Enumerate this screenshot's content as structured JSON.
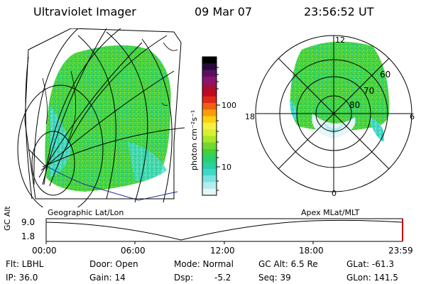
{
  "header": {
    "title": "Ultraviolet Imager",
    "date": "09 Mar 07",
    "time": "23:56:52 UT"
  },
  "colorbar": {
    "label": "photon cm⁻²s⁻¹",
    "ticks": [
      "100",
      "10"
    ],
    "colors": [
      "#000000",
      "#2a0a3c",
      "#5a1060",
      "#8a1470",
      "#a0103c",
      "#c00820",
      "#e02818",
      "#f06010",
      "#f89c08",
      "#fcd010",
      "#f8f040",
      "#d8f030",
      "#a8e828",
      "#70d830",
      "#40d040",
      "#28d070",
      "#28d0a0",
      "#40d8c8",
      "#78e4e0",
      "#b0eef0",
      "#e4f6f8"
    ]
  },
  "map_labels": {
    "left": "Geographic Lat/Lon",
    "right": "Apex MLat/MLT"
  },
  "polar": {
    "mlt_labels": [
      "12",
      "18",
      "6",
      "0"
    ],
    "lat_labels": [
      "60",
      "70",
      "80"
    ]
  },
  "timeline": {
    "ylabel": "GC Alt",
    "yticks": [
      "9.0",
      "1.8"
    ],
    "xticks": [
      "00:00",
      "06:00",
      "12:00",
      "18:00",
      "23:59"
    ]
  },
  "footer": {
    "filter": "Flt: LBHL",
    "ip": "IP: 36.0",
    "door": "Door: Open",
    "gain": "Gain: 14",
    "mode": "Mode: Normal",
    "dsp_label": "Dsp:",
    "dsp_value": "-5.2",
    "gc_alt": "GC Alt: 6.5 Re",
    "seq": "Seq: 39",
    "glat": "GLat: -61.3",
    "glon": "GLon: 141.5"
  },
  "colors": {
    "aurora_green": "#40d040",
    "aurora_cyan": "#40d8c8",
    "aurora_light": "#b0eef0",
    "marker_red": "#c00000"
  }
}
